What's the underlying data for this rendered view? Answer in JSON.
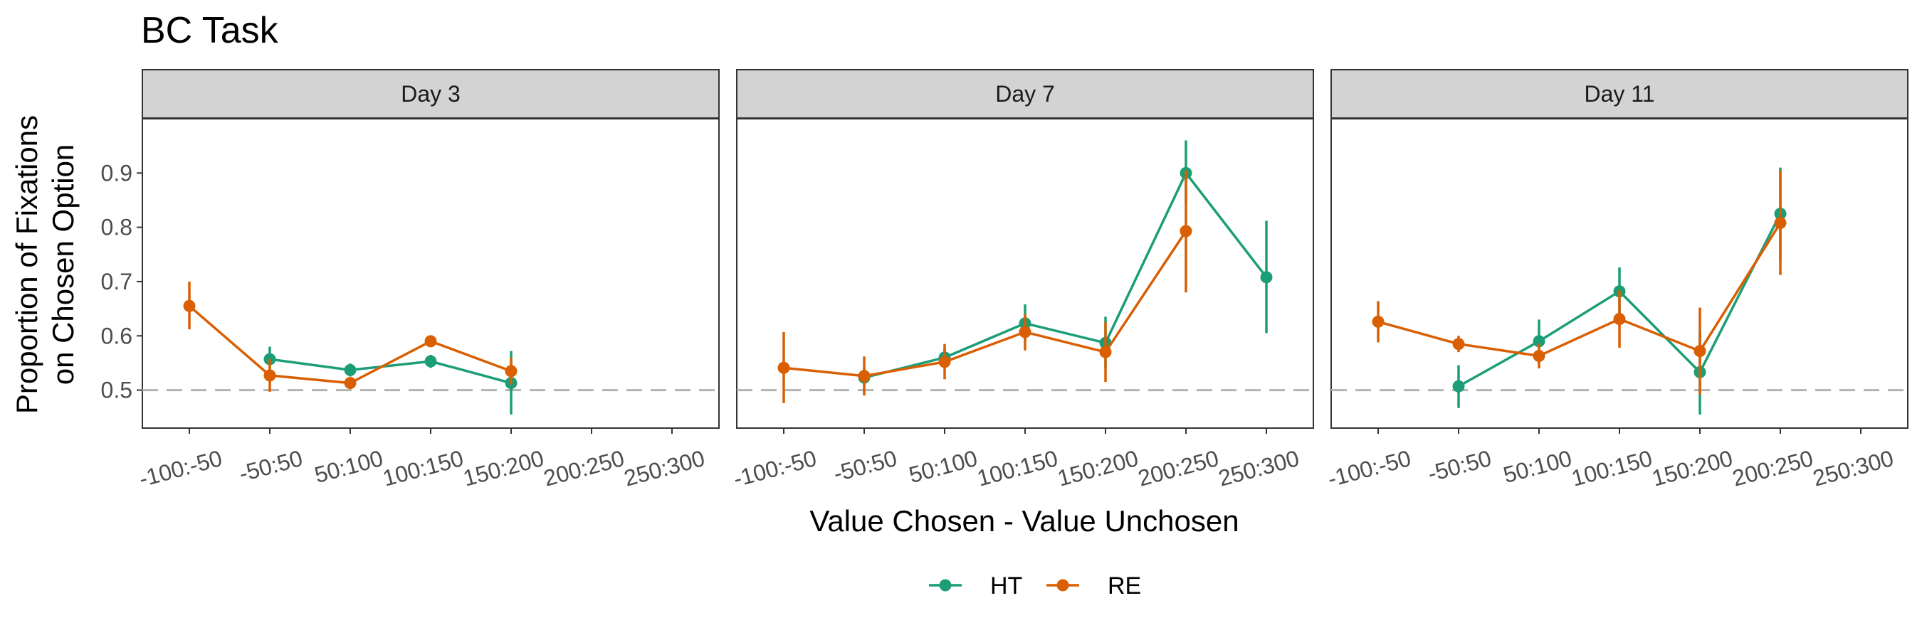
{
  "chart_data": {
    "type": "line",
    "title": "BC Task",
    "xlabel": "Value Chosen - Value Unchosen",
    "ylabel_lines": [
      "Proportion of Fixations",
      "on Chosen Option"
    ],
    "categories": [
      "-100:-50",
      "-50:50",
      "50:100",
      "100:150",
      "150:200",
      "200:250",
      "250:300"
    ],
    "ylim": [
      0.43,
      1.0
    ],
    "yticks": [
      0.5,
      0.6,
      0.7,
      0.8,
      0.9
    ],
    "ytick_labels": [
      "0.5",
      "0.6",
      "0.7",
      "0.8",
      "0.9"
    ],
    "reference_line": 0.5,
    "legend": {
      "position": "bottom",
      "entries": [
        "HT",
        "RE"
      ]
    },
    "colors": {
      "HT": "#1b9e77",
      "RE": "#d95f02",
      "reference": "#b3b3b3",
      "strip_fill": "#d3d3d3"
    },
    "panels": [
      {
        "label": "Day 3",
        "series": [
          {
            "name": "HT",
            "values": [
              null,
              0.557,
              0.537,
              0.553,
              0.513,
              null,
              null
            ],
            "low": [
              null,
              0.535,
              0.525,
              0.541,
              0.455,
              null,
              null
            ],
            "high": [
              null,
              0.58,
              0.549,
              0.565,
              0.572,
              null,
              null
            ]
          },
          {
            "name": "RE",
            "values": [
              0.655,
              0.527,
              0.513,
              0.59,
              0.535,
              null,
              null
            ],
            "low": [
              0.612,
              0.497,
              0.503,
              0.58,
              0.51,
              null,
              null
            ],
            "high": [
              0.7,
              0.557,
              0.523,
              0.6,
              0.56,
              null,
              null
            ]
          }
        ]
      },
      {
        "label": "Day 7",
        "series": [
          {
            "name": "HT",
            "values": [
              null,
              0.523,
              0.56,
              0.623,
              0.587,
              0.9,
              0.708
            ],
            "low": [
              null,
              0.505,
              0.542,
              0.59,
              0.54,
              0.845,
              0.605
            ],
            "high": [
              null,
              0.54,
              0.578,
              0.658,
              0.635,
              0.96,
              0.812
            ]
          },
          {
            "name": "RE",
            "values": [
              0.541,
              0.526,
              0.552,
              0.607,
              0.57,
              0.793,
              null
            ],
            "low": [
              0.476,
              0.49,
              0.52,
              0.573,
              0.515,
              0.68,
              null
            ],
            "high": [
              0.607,
              0.562,
              0.585,
              0.64,
              0.625,
              0.905,
              null
            ]
          }
        ]
      },
      {
        "label": "Day 11",
        "series": [
          {
            "name": "HT",
            "values": [
              null,
              0.507,
              0.59,
              0.682,
              0.533,
              0.825,
              null
            ],
            "low": [
              null,
              0.467,
              0.55,
              0.64,
              0.455,
              0.74,
              null
            ],
            "high": [
              null,
              0.546,
              0.63,
              0.726,
              0.61,
              0.91,
              null
            ]
          },
          {
            "name": "RE",
            "values": [
              0.626,
              0.585,
              0.563,
              0.631,
              0.572,
              0.808,
              null
            ],
            "low": [
              0.588,
              0.57,
              0.54,
              0.578,
              0.492,
              0.712,
              null
            ],
            "high": [
              0.664,
              0.6,
              0.586,
              0.684,
              0.652,
              0.905,
              null
            ]
          }
        ]
      }
    ]
  }
}
